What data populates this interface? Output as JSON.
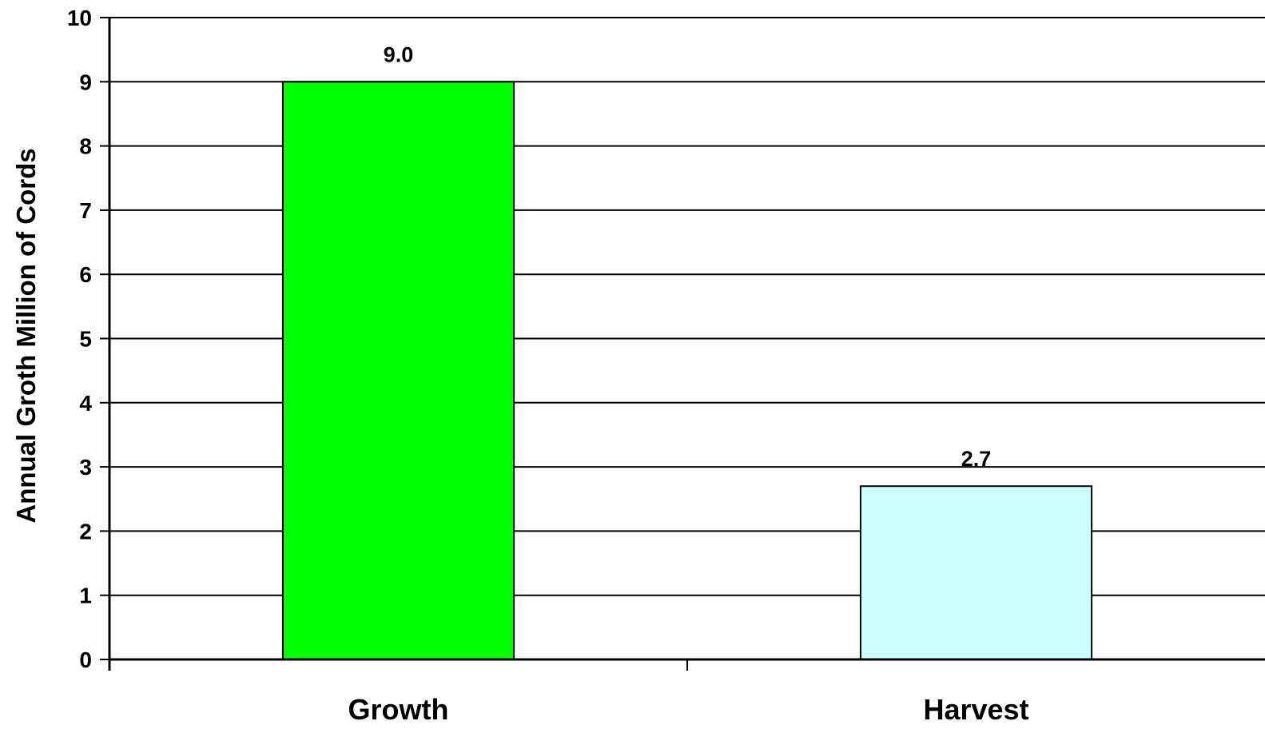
{
  "chart_data": {
    "type": "bar",
    "title": "",
    "xlabel": "",
    "ylabel": "Annual Groth Million of Cords",
    "ylim": [
      0,
      10
    ],
    "yticks": [
      0,
      1,
      2,
      3,
      4,
      5,
      6,
      7,
      8,
      9,
      10
    ],
    "ytick_labels": [
      "0",
      "1",
      "2",
      "3",
      "4",
      "5",
      "6",
      "7",
      "8",
      "9",
      "10"
    ],
    "grid": true,
    "legend": "none",
    "categories": [
      "Growth",
      "Harvest"
    ],
    "values": [
      9.0,
      2.7
    ],
    "data_labels": [
      "9.0",
      "2.7"
    ],
    "colors": [
      "#00ff00",
      "#ccffff"
    ]
  }
}
